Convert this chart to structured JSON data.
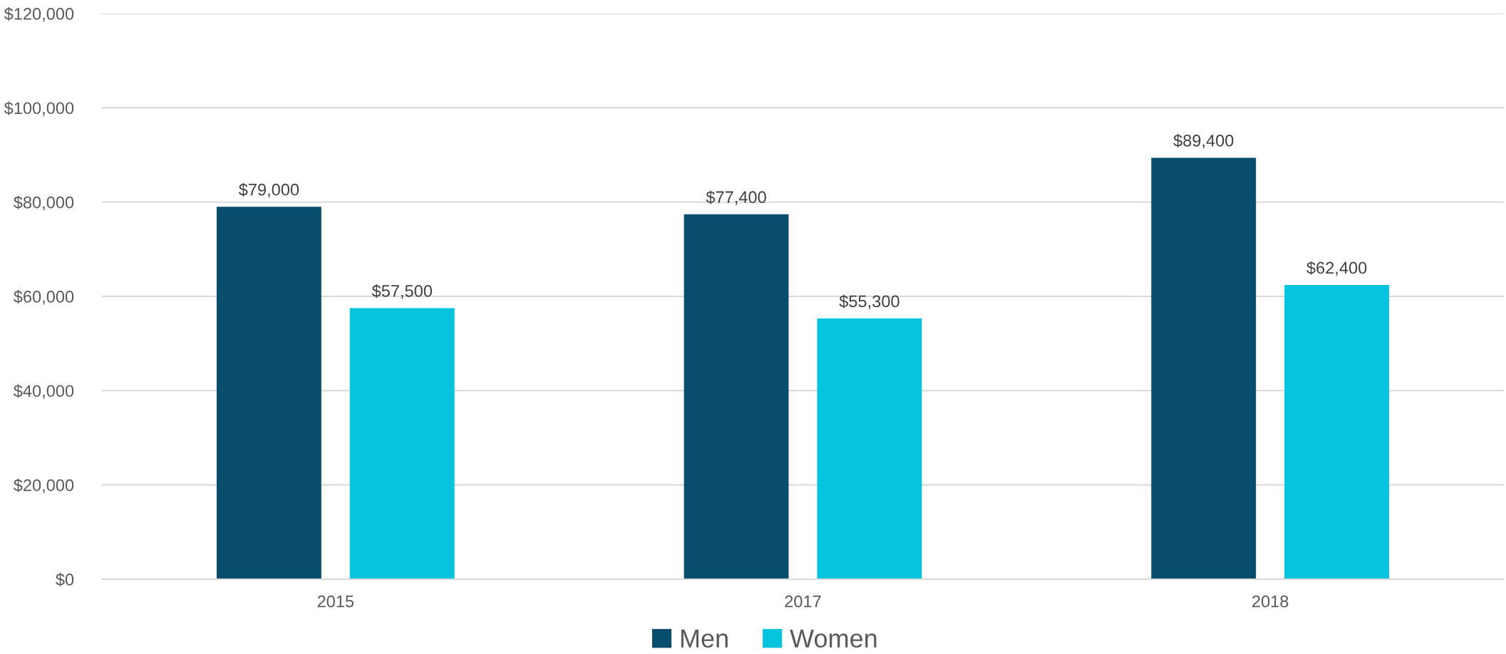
{
  "chart_data": {
    "type": "bar",
    "categories": [
      "2015",
      "2017",
      "2018"
    ],
    "series": [
      {
        "name": "Men",
        "color": "#084c6e",
        "values": [
          79000,
          77400,
          89400
        ],
        "value_labels": [
          "$79,000",
          "$77,400",
          "$89,400"
        ]
      },
      {
        "name": "Women",
        "color": "#06c3de",
        "values": [
          57500,
          55300,
          62400
        ],
        "value_labels": [
          "$57,500",
          "$55,300",
          "$62,400"
        ]
      }
    ],
    "ylim": [
      0,
      120000
    ],
    "yticks": [
      {
        "value": 0,
        "label": "$0"
      },
      {
        "value": 20000,
        "label": "$20,000"
      },
      {
        "value": 40000,
        "label": "$40,000"
      },
      {
        "value": 60000,
        "label": "$60,000"
      },
      {
        "value": 80000,
        "label": "$80,000"
      },
      {
        "value": 100000,
        "label": "$100,000"
      },
      {
        "value": 120000,
        "label": "$120,000"
      }
    ],
    "grid": "y",
    "legend": "bottom"
  }
}
